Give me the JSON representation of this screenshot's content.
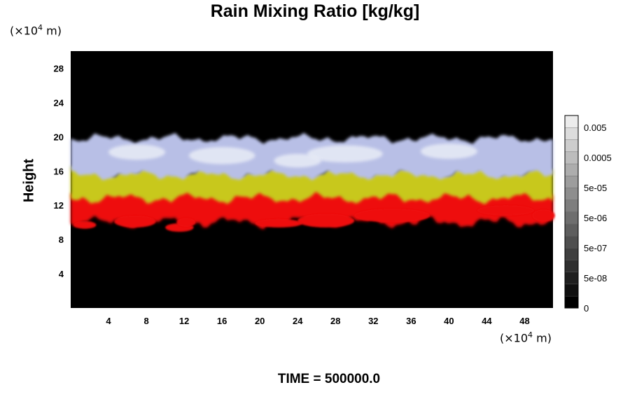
{
  "chart_data": {
    "type": "heatmap",
    "title": "Rain Mixing Ratio [kg/kg]",
    "ylabel": "Height",
    "x_unit": "(×10⁴ m)",
    "y_unit": "(×10⁴ m)",
    "unit_base": "(×10",
    "unit_exp": "4",
    "unit_suffix": " m)",
    "x_ticks": [
      4,
      8,
      12,
      16,
      20,
      24,
      28,
      32,
      36,
      40,
      44,
      48
    ],
    "y_ticks": [
      4,
      8,
      12,
      16,
      20,
      24,
      28
    ],
    "xlim": [
      0,
      51
    ],
    "ylim": [
      0,
      30
    ],
    "background_color": "#000000",
    "layers": [
      {
        "name": "upper",
        "color": "#b8bfe6",
        "bottom_km": 15.5,
        "top_km": 19.8
      },
      {
        "name": "middle",
        "color": "#c8c81e",
        "bottom_km": 12.8,
        "top_km": 16.0
      },
      {
        "name": "lower",
        "color": "#ee1111",
        "bottom_km": 10.0,
        "top_km": 13.5
      }
    ],
    "colorbar": {
      "labels": [
        "0",
        "5e-08",
        "5e-07",
        "5e-06",
        "5e-05",
        "0.0005",
        "0.005"
      ],
      "levels": 16
    },
    "annotation": "TIME = 500000.0"
  }
}
